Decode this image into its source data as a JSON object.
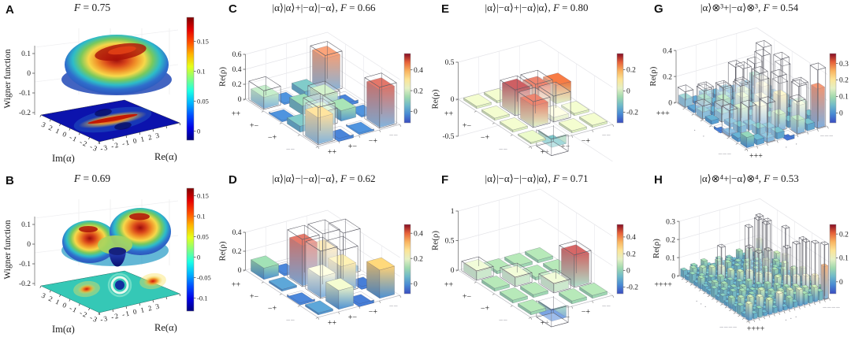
{
  "figure": {
    "background": "#ffffff",
    "colors": {
      "bar_colormap_low": "#3a4cc0",
      "bar_colormap_mid": "#f7f4d3",
      "bar_colormap_high": "#840c24",
      "wigner_plane_A": "#0c13ad",
      "wigner_plane_B": "#35c8b6",
      "wireframe": "#5d5d66"
    }
  },
  "chart_data": [
    {
      "panel": "A",
      "letter": "A",
      "type": "surface3d",
      "title_state": "",
      "title_sep": "",
      "title_fidelity": "F = 0.75",
      "fidelity": 0.75,
      "zlabel": "Wigner function",
      "zticks": [
        0.1,
        0,
        -0.1,
        -0.2
      ],
      "xlabel": "Re(α)",
      "xticks": [
        -3,
        -2,
        -1,
        0,
        1,
        2,
        3
      ],
      "ylabel": "Im(α)",
      "yticks": [
        3,
        2,
        1,
        0,
        -1,
        -2,
        -3
      ],
      "colorbar": {
        "ticks": [
          0.15,
          0.1,
          0.05,
          0
        ],
        "min": -0.015,
        "max": 0.19,
        "colormap": "jet"
      },
      "surface": {
        "positive_peaks": 1,
        "peak_height": 0.16,
        "negative_region": false,
        "description": "single broad rainbow-shaded dome with red interference ridge; flat projection below shows an elongated red ridge on a dark blue background"
      }
    },
    {
      "panel": "B",
      "letter": "B",
      "type": "surface3d",
      "title_state": "",
      "title_sep": "",
      "title_fidelity": "F = 0.69",
      "fidelity": 0.69,
      "zlabel": "Wigner function",
      "zticks": [
        0.1,
        0,
        -0.1,
        -0.2
      ],
      "xlabel": "Re(α)",
      "xticks": [
        -3,
        -2,
        -1,
        0,
        1,
        2,
        3
      ],
      "ylabel": "Im(α)",
      "yticks": [
        3,
        2,
        1,
        0,
        -1,
        -2,
        -3
      ],
      "colorbar": {
        "ticks": [
          0.15,
          0.1,
          0.05,
          0,
          -0.05,
          -0.1
        ],
        "min": -0.132,
        "max": 0.168,
        "colormap": "jet"
      },
      "surface": {
        "positive_peaks": 2,
        "peak_height": 0.15,
        "central_dip": -0.1,
        "description": "two rainbow-shaded peaks with a negative blue funnel between them; projection shows two red lobes and a dark blue negative core on a teal background"
      }
    },
    {
      "panel": "C",
      "letter": "C",
      "type": "bar3",
      "title_state": "|α⟩|α⟩+|−α⟩|−α⟩",
      "title_sep": ", ",
      "title_fidelity": "F = 0.66",
      "fidelity": 0.66,
      "zlabel": "Re(ρ)",
      "zticks": [
        0,
        0.2,
        0.4,
        0.6
      ],
      "row_ticks": [
        "++",
        "+−",
        "−+",
        "−−"
      ],
      "col_ticks": [
        "++",
        "+−",
        "−+",
        "−−"
      ],
      "colorbar": {
        "ticks": [
          0,
          0.2,
          0.4
        ],
        "min": -0.11,
        "max": 0.557
      },
      "measured": [
        [
          0.15,
          -0.02,
          0.08,
          0.45
        ],
        [
          -0.02,
          0.12,
          0.17,
          -0.04
        ],
        [
          0.08,
          0.17,
          0.14,
          -0.02
        ],
        [
          0.35,
          -0.04,
          -0.02,
          0.5
        ]
      ],
      "ideal": [
        [
          0.25,
          0,
          0,
          0.5
        ],
        [
          0,
          0,
          0.2,
          0
        ],
        [
          0,
          0.2,
          0,
          0
        ],
        [
          0.5,
          0,
          0,
          0.55
        ]
      ]
    },
    {
      "panel": "D",
      "letter": "D",
      "type": "bar3",
      "title_state": "|α⟩|α⟩−|−α⟩|−α⟩",
      "title_sep": ", ",
      "title_fidelity": "F = 0.62",
      "fidelity": 0.62,
      "zlabel": "Re(ρ)",
      "zticks": [
        0,
        0.2,
        0.4
      ],
      "row_ticks": [
        "++",
        "+−",
        "−+",
        "−−"
      ],
      "col_ticks": [
        "++",
        "+−",
        "−+",
        "−−"
      ],
      "colorbar": {
        "ticks": [
          0,
          0.2,
          0.4
        ],
        "min": -0.08,
        "max": 0.47
      },
      "measured": [
        [
          0.12,
          -0.02,
          0.03,
          -0.02
        ],
        [
          0.02,
          0.42,
          0.3,
          0.05
        ],
        [
          -0.02,
          0.22,
          0.27,
          -0.03
        ],
        [
          0.02,
          0.2,
          -0.03,
          0.3
        ]
      ],
      "ideal": [
        [
          0,
          0,
          0,
          0
        ],
        [
          0,
          0.5,
          0.5,
          0.45
        ],
        [
          0,
          0.5,
          0.45,
          0
        ],
        [
          0,
          0,
          0,
          0
        ]
      ]
    },
    {
      "panel": "E",
      "letter": "E",
      "type": "bar3",
      "title_state": "|α⟩|−α⟩+|−α⟩|α⟩",
      "title_sep": ", ",
      "title_fidelity": "F = 0.80",
      "fidelity": 0.8,
      "zlabel": "Re(ρ)",
      "zticks": [
        -0.5,
        0,
        0.5
      ],
      "row_ticks": [
        "++",
        "+−",
        "−+",
        "−−"
      ],
      "col_ticks": [
        "++",
        "+−",
        "−+",
        "−−"
      ],
      "colorbar": {
        "ticks": [
          0.2,
          0,
          -0.2
        ],
        "min": -0.3,
        "max": 0.35
      },
      "measured": [
        [
          0.03,
          0.03,
          0.03,
          0.02
        ],
        [
          0.03,
          0.32,
          0.28,
          0.25
        ],
        [
          0.03,
          0.28,
          0.05,
          0.03
        ],
        [
          0.02,
          -0.12,
          0.03,
          0.03
        ]
      ],
      "ideal": [
        [
          0,
          0,
          0,
          0
        ],
        [
          0,
          0.35,
          0.35,
          0
        ],
        [
          0,
          0.35,
          0.35,
          0
        ],
        [
          0,
          -0.22,
          0,
          0
        ]
      ]
    },
    {
      "panel": "F",
      "letter": "F",
      "type": "bar3",
      "title_state": "|α⟩|−α⟩−|−α⟩|α⟩",
      "title_sep": ", ",
      "title_fidelity": "F = 0.71",
      "fidelity": 0.71,
      "zlabel": "Re(ρ)",
      "zticks": [
        0,
        0.5,
        1
      ],
      "row_ticks": [
        "++",
        "+−",
        "−+",
        "−−"
      ],
      "col_ticks": [
        "++",
        "+−",
        "−+",
        "−−"
      ],
      "colorbar": {
        "ticks": [
          0.4,
          0.2,
          0,
          -0.2
        ],
        "min": -0.28,
        "max": 0.55
      },
      "measured": [
        [
          0.13,
          0.05,
          0.05,
          0.05
        ],
        [
          0.05,
          0.13,
          0.05,
          0.05
        ],
        [
          0.05,
          0.05,
          0.13,
          0.5
        ],
        [
          0.05,
          -0.2,
          0.05,
          0.05
        ]
      ],
      "ideal": [
        [
          0.16,
          0,
          0,
          0
        ],
        [
          0,
          0.16,
          0,
          0
        ],
        [
          0,
          0,
          0.16,
          0.55
        ],
        [
          0,
          -0.28,
          0,
          0
        ]
      ]
    },
    {
      "panel": "G",
      "letter": "G",
      "type": "bar3",
      "title_state": "|α⟩⊗³+|−α⟩⊗³",
      "title_sep": ", ",
      "title_fidelity": "F = 0.54",
      "fidelity": 0.54,
      "zlabel": "Re(ρ)",
      "zticks": [
        0,
        0.2,
        0.4
      ],
      "row_ticks": [
        "+++",
        "",
        "",
        "·",
        "·",
        "",
        "",
        "−−−"
      ],
      "col_ticks": [
        "+++",
        "",
        "",
        "·",
        "·",
        "",
        "",
        "−−−"
      ],
      "colorbar": {
        "ticks": [
          0.3,
          0.2,
          0.1,
          0
        ],
        "min": -0.06,
        "max": 0.36
      },
      "measured": [
        [
          0.06,
          0.02,
          0.05,
          0.03,
          0.04,
          0.02,
          0.03,
          0.08
        ],
        [
          0.02,
          0.08,
          0.03,
          0.06,
          0.03,
          0.05,
          0.02,
          0.04
        ],
        [
          0.05,
          0.03,
          0.1,
          0.04,
          0.12,
          0.04,
          0.16,
          0.03
        ],
        [
          0.03,
          0.06,
          0.04,
          0.14,
          0.05,
          0.18,
          0.04,
          0.06
        ],
        [
          -0.02,
          0.03,
          0.12,
          0.05,
          0.16,
          0.06,
          0.12,
          0.04
        ],
        [
          0.02,
          0.05,
          0.04,
          0.16,
          0.06,
          0.2,
          0.05,
          0.1
        ],
        [
          0.03,
          -0.02,
          0.06,
          0.04,
          0.12,
          0.05,
          0.15,
          0.05
        ],
        [
          0.08,
          0.04,
          0.03,
          0.05,
          -0.03,
          0.1,
          0.05,
          0.3
        ]
      ],
      "ideal": [
        [
          0.12,
          0,
          0.1,
          0,
          0,
          0.2,
          0,
          0
        ],
        [
          0,
          0.15,
          0,
          0.12,
          0,
          0,
          0.25,
          0
        ],
        [
          0.1,
          0,
          0.2,
          0,
          0.3,
          0,
          0.42,
          0
        ],
        [
          0,
          0.12,
          0,
          0.25,
          0,
          0.42,
          0,
          0.3
        ],
        [
          0,
          0,
          0.3,
          0,
          0.3,
          0,
          0.42,
          0
        ],
        [
          0.2,
          0,
          0,
          0.42,
          0,
          0.3,
          0,
          0.25
        ],
        [
          0,
          0.25,
          0,
          0,
          0.42,
          0,
          0.3,
          0
        ],
        [
          0,
          0,
          0.3,
          0,
          0,
          0.25,
          0,
          0.45
        ]
      ]
    },
    {
      "panel": "H",
      "letter": "H",
      "type": "bar3",
      "title_state": "|α⟩⊗⁴+|−α⟩⊗⁴",
      "title_sep": ", ",
      "title_fidelity": "F = 0.53",
      "fidelity": 0.53,
      "zlabel": "Re(ρ)",
      "zticks": [
        0,
        0.1,
        0.2,
        0.3
      ],
      "row_ticks": [
        "++++",
        "",
        "",
        "",
        "",
        "",
        "·",
        "·",
        "·",
        "",
        "",
        "",
        "",
        "",
        "",
        "−−−−"
      ],
      "col_ticks": [
        "++++",
        "",
        "",
        "",
        "",
        "",
        "·",
        "·",
        "·",
        "",
        "",
        "",
        "",
        "",
        "",
        "−−−−"
      ],
      "colorbar": {
        "ticks": [
          0.2,
          0.1,
          0
        ],
        "min": -0.05,
        "max": 0.24
      },
      "measured": [
        [
          0.04,
          0.02,
          0.05,
          0.02,
          0.06,
          0.03,
          0.02,
          0.05,
          0.02,
          0.04,
          0.02,
          0.06,
          0.03,
          0.05,
          0.02,
          0.09
        ],
        [
          0.02,
          0.06,
          0.02,
          0.05,
          0.02,
          0.04,
          0.06,
          0.02,
          0.05,
          0.02,
          0.03,
          0.02,
          0.07,
          0.02,
          0.05,
          0.03
        ],
        [
          0.05,
          0.02,
          0.07,
          0.03,
          0.05,
          0.02,
          0.03,
          0.06,
          0.02,
          0.05,
          0.02,
          0.04,
          0.02,
          0.08,
          0.03,
          0.05
        ],
        [
          0.02,
          0.05,
          0.03,
          0.08,
          0.02,
          0.06,
          0.02,
          0.03,
          0.05,
          0.02,
          0.06,
          0.02,
          0.05,
          0.02,
          0.09,
          0.02
        ],
        [
          0.06,
          0.02,
          0.05,
          0.02,
          0.09,
          0.03,
          0.05,
          0.02,
          0.03,
          0.06,
          0.02,
          0.05,
          0.02,
          0.06,
          0.02,
          0.08
        ],
        [
          0.03,
          0.04,
          0.02,
          0.06,
          0.03,
          0.08,
          0.02,
          0.05,
          0.02,
          0.03,
          0.05,
          0.02,
          0.08,
          0.02,
          0.06,
          0.03
        ],
        [
          0.02,
          0.06,
          0.03,
          0.02,
          0.05,
          0.02,
          0.08,
          0.03,
          0.06,
          0.02,
          0.04,
          0.06,
          0.02,
          0.05,
          0.03,
          0.1
        ],
        [
          0.05,
          0.02,
          0.06,
          0.03,
          0.02,
          0.05,
          0.03,
          0.09,
          0.02,
          0.05,
          0.02,
          0.03,
          0.06,
          0.02,
          0.08,
          0.02
        ],
        [
          0.02,
          0.05,
          0.02,
          0.05,
          0.03,
          0.02,
          0.06,
          0.02,
          0.08,
          0.03,
          0.06,
          0.02,
          0.04,
          0.07,
          0.02,
          0.06
        ],
        [
          0.04,
          0.02,
          0.05,
          0.02,
          0.06,
          0.03,
          0.02,
          0.05,
          0.03,
          0.09,
          0.02,
          0.06,
          0.02,
          0.04,
          0.08,
          0.03
        ],
        [
          0.02,
          0.03,
          0.02,
          0.06,
          0.02,
          0.05,
          0.04,
          0.02,
          0.06,
          0.02,
          0.08,
          0.03,
          0.06,
          0.02,
          0.05,
          0.09
        ],
        [
          0.06,
          0.02,
          0.04,
          0.02,
          0.05,
          0.02,
          0.06,
          0.03,
          0.02,
          0.06,
          0.03,
          0.09,
          0.02,
          0.07,
          0.03,
          0.06
        ],
        [
          0.03,
          0.07,
          0.02,
          0.05,
          0.02,
          0.08,
          0.02,
          0.06,
          0.04,
          0.02,
          0.06,
          0.02,
          0.1,
          0.03,
          0.07,
          0.04
        ],
        [
          0.05,
          0.02,
          0.08,
          0.02,
          0.06,
          0.02,
          0.05,
          0.02,
          0.07,
          0.04,
          0.02,
          0.07,
          0.03,
          0.11,
          0.04,
          0.08
        ],
        [
          0.02,
          0.05,
          0.03,
          0.09,
          0.02,
          0.06,
          0.03,
          0.08,
          0.02,
          0.08,
          0.05,
          0.03,
          0.07,
          0.04,
          0.12,
          0.05
        ],
        [
          0.09,
          0.03,
          0.05,
          0.02,
          0.08,
          0.03,
          0.1,
          0.02,
          0.06,
          0.03,
          0.09,
          0.06,
          0.04,
          0.08,
          0.05,
          0.18
        ]
      ],
      "ideal_sparse": [
        [
          0,
          15,
          0.22
        ],
        [
          1,
          12,
          0.2
        ],
        [
          2,
          13,
          0.25
        ],
        [
          3,
          14,
          0.25
        ],
        [
          4,
          4,
          0.2
        ],
        [
          5,
          12,
          0.28
        ],
        [
          6,
          15,
          0.25
        ],
        [
          7,
          7,
          0.22
        ],
        [
          8,
          8,
          0.2
        ],
        [
          9,
          9,
          0.22
        ],
        [
          10,
          15,
          0.25
        ],
        [
          11,
          11,
          0.25
        ],
        [
          12,
          12,
          0.28
        ],
        [
          13,
          13,
          0.3
        ],
        [
          14,
          14,
          0.3
        ],
        [
          15,
          15,
          0.3
        ]
      ]
    }
  ]
}
